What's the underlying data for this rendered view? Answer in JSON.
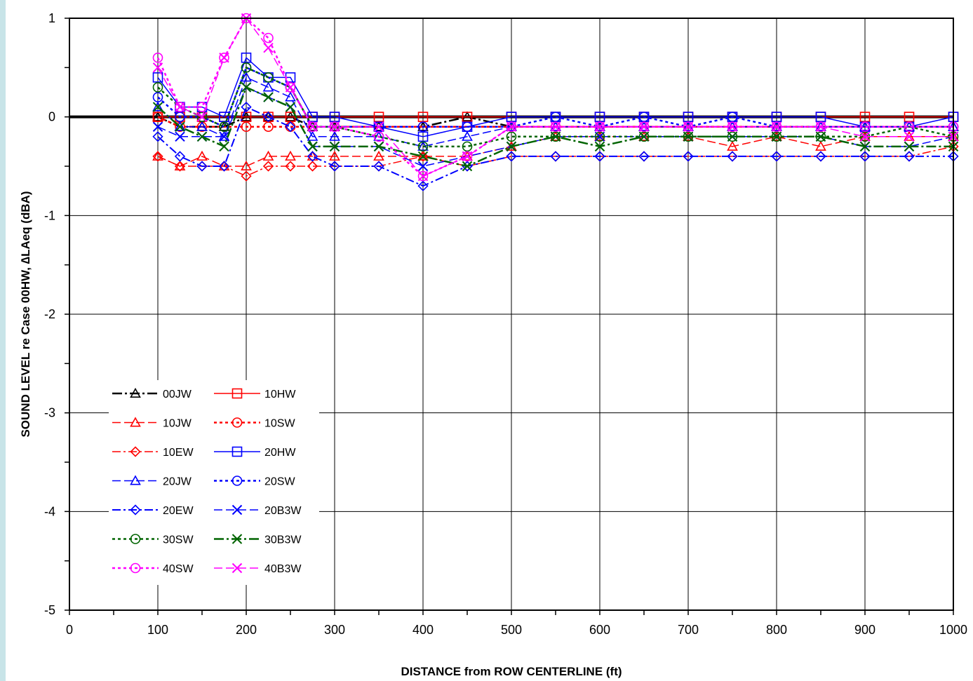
{
  "colors": {
    "page_background": "#c8e4e8",
    "plot_background": "#ffffff",
    "black": "#000000",
    "red": "#ff0000",
    "blue": "#0000ff",
    "green": "#006400",
    "magenta": "#ff00ff"
  },
  "chart_data": {
    "type": "line",
    "title": "",
    "xlabel": "DISTANCE from ROW CENTERLINE (ft)",
    "ylabel": "SOUND LEVEL re Case 00HW, ∆LAeq (dBA)",
    "xlim": [
      0,
      1000
    ],
    "ylim": [
      -5,
      1
    ],
    "xticks": [
      0,
      100,
      200,
      300,
      400,
      500,
      600,
      700,
      800,
      900,
      1000
    ],
    "xtick_labels": [
      "0",
      "100",
      "200",
      "300",
      "400",
      "500",
      "600",
      "700",
      "800",
      "900",
      "1000"
    ],
    "yticks": [
      -5,
      -4,
      -3,
      -2,
      -1,
      0,
      1
    ],
    "ytick_labels": [
      "-5",
      "-4",
      "-3",
      "-2",
      "-1",
      "0",
      "1"
    ],
    "grid": true,
    "legend_position": "lower-left",
    "x": [
      100,
      125,
      150,
      175,
      200,
      225,
      250,
      275,
      300,
      350,
      400,
      450,
      500,
      550,
      600,
      650,
      700,
      750,
      800,
      850,
      900,
      950,
      1000
    ],
    "series": [
      {
        "name": "00JW",
        "color": "#000000",
        "marker": "triangle",
        "dash": "14,4,3,4",
        "width": 2.5,
        "values": [
          0,
          -0.1,
          -0.1,
          -0.1,
          0,
          0,
          0,
          -0.1,
          -0.1,
          -0.1,
          -0.1,
          0,
          -0.1,
          -0.1,
          -0.1,
          -0.1,
          -0.1,
          -0.1,
          -0.1,
          -0.1,
          -0.1,
          -0.1,
          -0.1
        ]
      },
      {
        "name": "10HW",
        "color": "#ff0000",
        "marker": "square",
        "dash": "",
        "width": 1.5,
        "values": [
          0,
          0,
          0,
          0,
          0,
          0,
          0,
          0,
          0,
          0,
          0,
          0,
          0,
          0,
          0,
          0,
          0,
          0,
          0,
          0,
          0,
          0,
          0
        ]
      },
      {
        "name": "10JW",
        "color": "#ff0000",
        "marker": "triangle",
        "dash": "12,5",
        "width": 1.5,
        "values": [
          -0.4,
          -0.5,
          -0.4,
          -0.5,
          -0.5,
          -0.4,
          -0.4,
          -0.4,
          -0.4,
          -0.4,
          -0.4,
          -0.4,
          -0.3,
          -0.2,
          -0.2,
          -0.2,
          -0.2,
          -0.3,
          -0.2,
          -0.3,
          -0.2,
          -0.2,
          -0.2
        ]
      },
      {
        "name": "10SW",
        "color": "#ff0000",
        "marker": "circle",
        "dash": "4,4",
        "width": 2.5,
        "values": [
          0,
          -0.1,
          -0.1,
          -0.1,
          -0.1,
          -0.1,
          -0.1,
          -0.1,
          -0.1,
          -0.1,
          -0.1,
          -0.1,
          -0.1,
          -0.1,
          -0.1,
          -0.1,
          -0.1,
          -0.1,
          -0.1,
          -0.1,
          -0.1,
          -0.1,
          -0.1
        ]
      },
      {
        "name": "10EW",
        "color": "#ff0000",
        "marker": "diamond",
        "dash": "12,4,3,4",
        "width": 1.5,
        "values": [
          -0.4,
          -0.5,
          -0.5,
          -0.5,
          -0.6,
          -0.5,
          -0.5,
          -0.5,
          -0.5,
          -0.5,
          -0.4,
          -0.5,
          -0.4,
          -0.4,
          -0.4,
          -0.4,
          -0.4,
          -0.4,
          -0.4,
          -0.4,
          -0.4,
          -0.4,
          -0.3
        ]
      },
      {
        "name": "20HW",
        "color": "#0000ff",
        "marker": "square",
        "dash": "",
        "width": 1.5,
        "values": [
          0.4,
          0.1,
          0.1,
          0,
          0.6,
          0.4,
          0.4,
          0,
          0,
          -0.1,
          -0.2,
          -0.1,
          0,
          0,
          0,
          0,
          0,
          0,
          0,
          0,
          -0.1,
          -0.1,
          0
        ]
      },
      {
        "name": "20JW",
        "color": "#0000ff",
        "marker": "triangle",
        "dash": "12,5",
        "width": 1.5,
        "values": [
          0.1,
          -0.1,
          -0.1,
          -0.2,
          0.4,
          0.3,
          0.2,
          -0.2,
          -0.2,
          -0.2,
          -0.3,
          -0.2,
          -0.1,
          -0.1,
          -0.1,
          -0.1,
          -0.1,
          -0.1,
          -0.1,
          -0.1,
          -0.1,
          -0.1,
          -0.1
        ]
      },
      {
        "name": "20SW",
        "color": "#0000ff",
        "marker": "circle",
        "dash": "4,4",
        "width": 2.5,
        "values": [
          0.2,
          0,
          0,
          -0.1,
          0.5,
          0.4,
          0.3,
          -0.1,
          -0.1,
          -0.1,
          -0.1,
          -0.1,
          -0.1,
          0,
          -0.1,
          0,
          -0.1,
          0,
          -0.1,
          -0.1,
          -0.1,
          -0.1,
          -0.1
        ]
      },
      {
        "name": "20EW",
        "color": "#0000ff",
        "marker": "diamond",
        "dash": "12,4,3,4",
        "width": 2,
        "values": [
          -0.2,
          -0.4,
          -0.5,
          -0.5,
          0.1,
          0,
          -0.1,
          -0.4,
          -0.5,
          -0.5,
          -0.7,
          -0.5,
          -0.4,
          -0.4,
          -0.4,
          -0.4,
          -0.4,
          -0.4,
          -0.4,
          -0.4,
          -0.4,
          -0.4,
          -0.4
        ]
      },
      {
        "name": "20B3W",
        "color": "#0000ff",
        "marker": "x",
        "dash": "12,5",
        "width": 1.5,
        "values": [
          -0.1,
          -0.2,
          -0.2,
          -0.2,
          0.3,
          0.2,
          0.1,
          -0.3,
          -0.3,
          -0.3,
          -0.5,
          -0.4,
          -0.3,
          -0.2,
          -0.2,
          -0.2,
          -0.2,
          -0.2,
          -0.2,
          -0.2,
          -0.3,
          -0.3,
          -0.2
        ]
      },
      {
        "name": "30SW",
        "color": "#006400",
        "marker": "circle",
        "dash": "4,4",
        "width": 2.5,
        "values": [
          0.3,
          0.1,
          0,
          -0.1,
          0.5,
          0.4,
          0.3,
          -0.1,
          -0.1,
          -0.2,
          -0.3,
          -0.3,
          -0.2,
          -0.2,
          -0.2,
          -0.2,
          -0.2,
          -0.2,
          -0.2,
          -0.2,
          -0.2,
          -0.1,
          -0.2
        ]
      },
      {
        "name": "30B3W",
        "color": "#006400",
        "marker": "x",
        "dash": "14,4,3,4",
        "width": 2.5,
        "values": [
          0.1,
          -0.1,
          -0.2,
          -0.3,
          0.3,
          0.2,
          0.1,
          -0.3,
          -0.3,
          -0.3,
          -0.4,
          -0.5,
          -0.3,
          -0.2,
          -0.3,
          -0.2,
          -0.2,
          -0.2,
          -0.2,
          -0.2,
          -0.3,
          -0.3,
          -0.3
        ]
      },
      {
        "name": "40SW",
        "color": "#ff00ff",
        "marker": "circle",
        "dash": "4,4",
        "width": 2.5,
        "values": [
          0.6,
          0.1,
          0.1,
          0.6,
          1.0,
          0.8,
          0.3,
          -0.1,
          -0.1,
          -0.2,
          -0.6,
          -0.4,
          -0.1,
          -0.1,
          -0.1,
          -0.1,
          -0.1,
          -0.1,
          -0.1,
          -0.1,
          -0.1,
          -0.1,
          -0.1
        ]
      },
      {
        "name": "40B3W",
        "color": "#ff00ff",
        "marker": "x",
        "dash": "12,5",
        "width": 1.5,
        "values": [
          0.5,
          0.1,
          0,
          0.6,
          1.0,
          0.7,
          0.3,
          -0.1,
          -0.1,
          -0.1,
          -0.6,
          -0.4,
          -0.1,
          -0.1,
          -0.1,
          -0.1,
          -0.1,
          -0.1,
          -0.1,
          -0.1,
          -0.2,
          -0.2,
          -0.2
        ]
      }
    ]
  }
}
